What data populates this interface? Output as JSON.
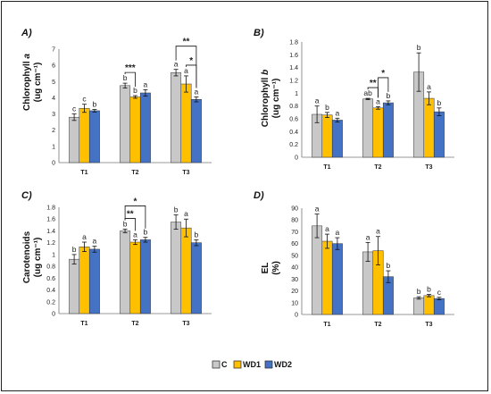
{
  "colors": {
    "C": "#c8c8c8",
    "WD1": "#ffc000",
    "WD2": "#4472c4"
  },
  "legend": [
    "C",
    "WD1",
    "WD2"
  ],
  "chart_data": [
    {
      "type": "bar",
      "panel": "A)",
      "ylabel": "Chlorophyll a (ug cm⁻¹)",
      "ylim": [
        0,
        7
      ],
      "yticks": [
        "0",
        "1",
        "2",
        "3",
        "4",
        "5",
        "6",
        "7"
      ],
      "categories": [
        "T1",
        "T2",
        "T3"
      ],
      "series": [
        {
          "name": "C",
          "values": [
            2.8,
            4.75,
            5.55
          ],
          "errors": [
            0.2,
            0.15,
            0.2
          ],
          "letters": [
            "c",
            "b",
            "a"
          ]
        },
        {
          "name": "WD1",
          "values": [
            3.35,
            4.05,
            4.85
          ],
          "errors": [
            0.25,
            0.08,
            0.5
          ],
          "letters": [
            "c",
            "b",
            "a"
          ]
        },
        {
          "name": "WD2",
          "values": [
            3.2,
            4.3,
            3.9
          ],
          "errors": [
            0.08,
            0.2,
            0.15
          ],
          "letters": [
            "b",
            "a",
            "a"
          ]
        }
      ],
      "brackets": [
        {
          "category": 1,
          "from": 0,
          "to": 1,
          "label": "***",
          "level": 1
        },
        {
          "category": 2,
          "from": 0,
          "to": 2,
          "label": "**",
          "level": 2
        },
        {
          "category": 2,
          "from": 1,
          "to": 2,
          "label": "*",
          "level": 1
        }
      ]
    },
    {
      "type": "bar",
      "panel": "B)",
      "ylabel": "Chlorophyll b (ug cm⁻¹)",
      "ylim": [
        0,
        1.8
      ],
      "yticks": [
        "0",
        "0.2",
        "0.4",
        "0.6",
        "0.8",
        "1",
        "1.2",
        "1.4",
        "1.6",
        "1.8"
      ],
      "categories": [
        "T1",
        "T2",
        "T3"
      ],
      "series": [
        {
          "name": "C",
          "values": [
            0.67,
            0.91,
            1.33
          ],
          "errors": [
            0.13,
            0.01,
            0.3
          ],
          "letters": [
            "a",
            "ab",
            "b"
          ]
        },
        {
          "name": "WD1",
          "values": [
            0.66,
            0.77,
            0.92
          ],
          "errors": [
            0.04,
            0.02,
            0.1
          ],
          "letters": [
            "b",
            "a",
            "a"
          ]
        },
        {
          "name": "WD2",
          "values": [
            0.58,
            0.85,
            0.71
          ],
          "errors": [
            0.03,
            0.03,
            0.06
          ],
          "letters": [
            "a",
            "b",
            "b"
          ]
        }
      ],
      "brackets": [
        {
          "category": 1,
          "from": 0,
          "to": 1,
          "label": "**",
          "level": 1
        },
        {
          "category": 1,
          "from": 1,
          "to": 2,
          "label": "*",
          "level": 2
        }
      ]
    },
    {
      "type": "bar",
      "panel": "C)",
      "ylabel": "Carotenoids (ug cm⁻¹)",
      "ylim": [
        0,
        1.8
      ],
      "yticks": [
        "0",
        "0.2",
        "0.4",
        "0.6",
        "0.8",
        "1",
        "1.2",
        "1.4",
        "1.6",
        "1.8"
      ],
      "categories": [
        "T1",
        "T2",
        "T3"
      ],
      "series": [
        {
          "name": "C",
          "values": [
            0.92,
            1.4,
            1.55
          ],
          "errors": [
            0.08,
            0.03,
            0.12
          ],
          "letters": [
            "b",
            "b",
            "b"
          ]
        },
        {
          "name": "WD1",
          "values": [
            1.13,
            1.21,
            1.45
          ],
          "errors": [
            0.08,
            0.04,
            0.15
          ],
          "letters": [
            "a",
            "a",
            "a"
          ]
        },
        {
          "name": "WD2",
          "values": [
            1.09,
            1.25,
            1.2
          ],
          "errors": [
            0.05,
            0.04,
            0.05
          ],
          "letters": [
            "a",
            "b",
            "b"
          ]
        }
      ],
      "brackets": [
        {
          "category": 1,
          "from": 0,
          "to": 1,
          "label": "**",
          "level": 1
        },
        {
          "category": 1,
          "from": 0,
          "to": 2,
          "label": "*",
          "level": 2
        }
      ]
    },
    {
      "type": "bar",
      "panel": "D)",
      "ylabel": "EL (%)",
      "ylim": [
        0,
        90
      ],
      "yticks": [
        "0",
        "10",
        "20",
        "30",
        "40",
        "50",
        "60",
        "70",
        "80",
        "90"
      ],
      "categories": [
        "T1",
        "T2",
        "T3"
      ],
      "series": [
        {
          "name": "C",
          "values": [
            75,
            53,
            14
          ],
          "errors": [
            10,
            8,
            1
          ],
          "letters": [
            "a",
            "a",
            "b"
          ]
        },
        {
          "name": "WD1",
          "values": [
            62,
            54,
            16
          ],
          "errors": [
            6,
            12,
            1
          ],
          "letters": [
            "a",
            "a",
            "b"
          ]
        },
        {
          "name": "WD2",
          "values": [
            60,
            32,
            13.5
          ],
          "errors": [
            5,
            5,
            1
          ],
          "letters": [
            "a",
            "b",
            "c"
          ]
        }
      ],
      "brackets": []
    }
  ]
}
